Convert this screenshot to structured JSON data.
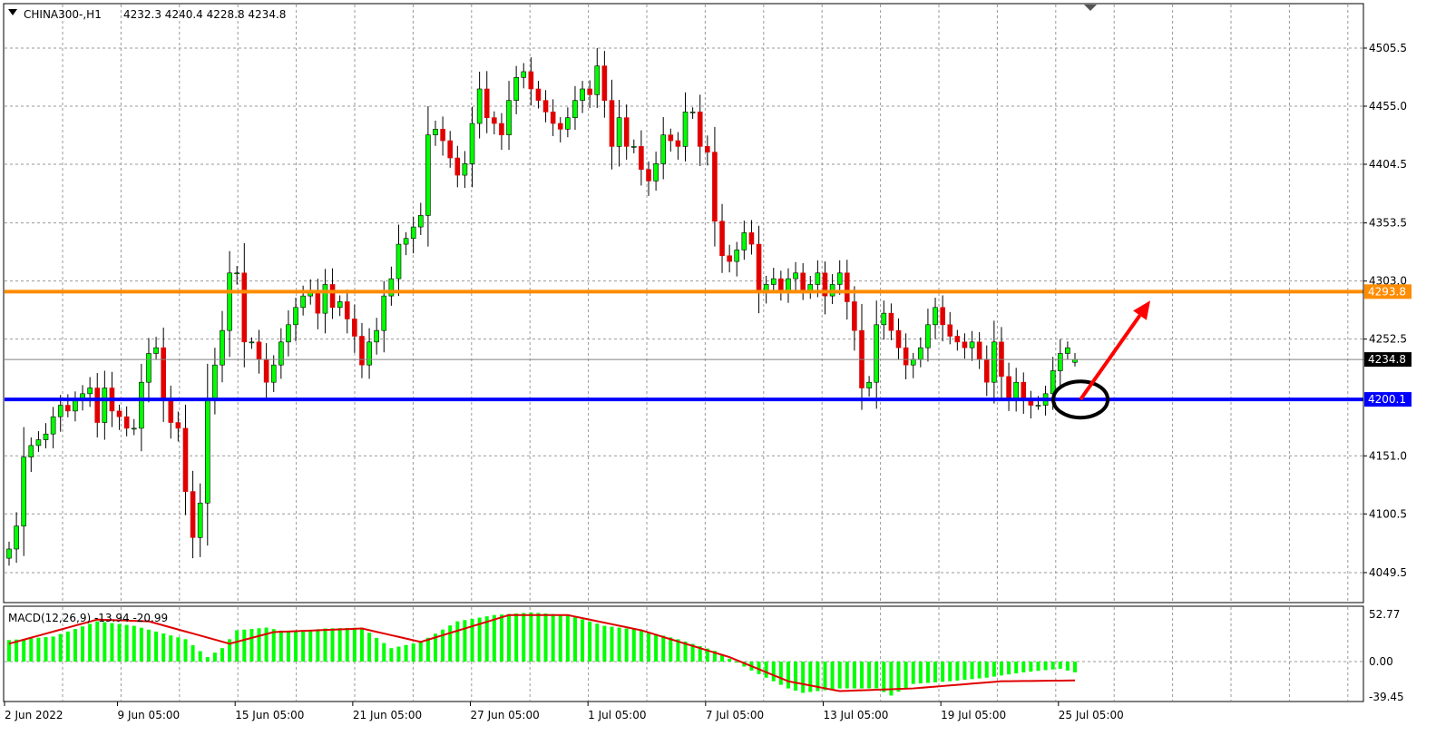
{
  "header": {
    "menu_icon": "triangle-down-icon",
    "symbol": "CHINA300-,H1",
    "ohlc": "4232.3 4240.4 4228.8 4234.8"
  },
  "colors": {
    "bull": "#00ff00",
    "bear": "#e00000",
    "resistance": "#ff8c00",
    "support": "#0000ff",
    "macd_histogram": "#00ff00",
    "macd_signal": "#e00000",
    "arrow": "#ff0000",
    "circle": "#000000"
  },
  "chart_data": {
    "type": "candlestick",
    "symbol": "CHINA300-",
    "timeframe": "H1",
    "ylim": [
      4020,
      4530
    ],
    "grid": true,
    "y_ticks": [
      "4505.5",
      "4455.0",
      "4404.5",
      "4353.5",
      "4303.0",
      "4252.5",
      "4151.0",
      "4100.5",
      "4049.5"
    ],
    "x_tick_labels": [
      {
        "idx": 0,
        "label": "2 Jun 2022"
      },
      {
        "idx": 15,
        "label": "9 Jun 05:00"
      },
      {
        "idx": 31,
        "label": "15 Jun 05:00"
      },
      {
        "idx": 47,
        "label": "21 Jun 05:00"
      },
      {
        "idx": 63,
        "label": "27 Jun 05:00"
      },
      {
        "idx": 79,
        "label": "1 Jul 05:00"
      },
      {
        "idx": 95,
        "label": "7 Jul 05:00"
      },
      {
        "idx": 111,
        "label": "13 Jul 05:00"
      },
      {
        "idx": 127,
        "label": "19 Jul 05:00"
      },
      {
        "idx": 143,
        "label": "25 Jul 05:00"
      }
    ],
    "closes": [
      4070,
      4090,
      4150,
      4160,
      4165,
      4170,
      4185,
      4195,
      4190,
      4200,
      4205,
      4210,
      4180,
      4210,
      4190,
      4185,
      4175,
      4175,
      4215,
      4240,
      4245,
      4200,
      4180,
      4175,
      4120,
      4080,
      4110,
      4200,
      4230,
      4260,
      4310,
      4310,
      4250,
      4250,
      4235,
      4215,
      4230,
      4250,
      4265,
      4280,
      4290,
      4295,
      4275,
      4300,
      4280,
      4285,
      4270,
      4255,
      4230,
      4250,
      4260,
      4290,
      4305,
      4335,
      4340,
      4350,
      4360,
      4430,
      4435,
      4425,
      4410,
      4395,
      4405,
      4440,
      4470,
      4445,
      4440,
      4430,
      4460,
      4480,
      4485,
      4470,
      4460,
      4450,
      4440,
      4435,
      4445,
      4460,
      4470,
      4465,
      4490,
      4460,
      4420,
      4445,
      4420,
      4420,
      4400,
      4390,
      4405,
      4430,
      4425,
      4420,
      4450,
      4450,
      4420,
      4415,
      4355,
      4325,
      4320,
      4330,
      4345,
      4335,
      4295,
      4300,
      4305,
      4295,
      4305,
      4310,
      4295,
      4300,
      4310,
      4290,
      4300,
      4310,
      4285,
      4260,
      4210,
      4215,
      4265,
      4275,
      4260,
      4245,
      4230,
      4235,
      4245,
      4265,
      4280,
      4265,
      4255,
      4250,
      4245,
      4250,
      4235,
      4215,
      4250,
      4220,
      4200,
      4215,
      4200,
      4195,
      4195,
      4205,
      4225,
      4240,
      4245,
      4234.8
    ],
    "last_bar": {
      "open": 4232.3,
      "high": 4240.4,
      "low": 4228.8,
      "close": 4234.8
    },
    "horizontal_lines": [
      {
        "price": 4293.8,
        "label": "4293.8",
        "color": "#ff8c00"
      },
      {
        "price": 4200.1,
        "label": "4200.1",
        "color": "#0000ff"
      }
    ],
    "current_price": {
      "price": 4234.8,
      "label": "4234.8"
    },
    "annotations": {
      "ellipse": {
        "idx": 146,
        "price": 4200
      },
      "arrow": {
        "from": {
          "idx": 146,
          "price": 4200
        },
        "to": {
          "idx": 155,
          "price": 4286
        }
      }
    },
    "macd": {
      "label": "MACD(12,26,9) -13.94 -20.99",
      "ylim": [
        -45,
        58
      ],
      "y_ticks": [
        "52.77",
        "0.00",
        "-39.45"
      ],
      "main": [
        [
          0,
          24
        ],
        [
          6,
          28
        ],
        [
          12,
          45
        ],
        [
          17,
          40
        ],
        [
          24,
          25
        ],
        [
          27,
          5
        ],
        [
          29,
          15
        ],
        [
          31,
          35
        ],
        [
          35,
          38
        ],
        [
          38,
          33
        ],
        [
          43,
          37
        ],
        [
          48,
          38
        ],
        [
          52,
          15
        ],
        [
          56,
          22
        ],
        [
          61,
          45
        ],
        [
          66,
          52
        ],
        [
          71,
          55
        ],
        [
          76,
          52
        ],
        [
          81,
          40
        ],
        [
          86,
          35
        ],
        [
          91,
          25
        ],
        [
          96,
          12
        ],
        [
          101,
          -10
        ],
        [
          106,
          -30
        ],
        [
          108,
          -35
        ],
        [
          113,
          -30
        ],
        [
          118,
          -30
        ],
        [
          120,
          -38
        ],
        [
          123,
          -25
        ],
        [
          128,
          -22
        ],
        [
          133,
          -18
        ],
        [
          138,
          -12
        ],
        [
          143,
          -8
        ],
        [
          146,
          -14
        ]
      ],
      "signal": [
        [
          0,
          20
        ],
        [
          12,
          47
        ],
        [
          19,
          45
        ],
        [
          30,
          20
        ],
        [
          36,
          33
        ],
        [
          48,
          37
        ],
        [
          56,
          22
        ],
        [
          68,
          52
        ],
        [
          76,
          52
        ],
        [
          86,
          35
        ],
        [
          98,
          5
        ],
        [
          106,
          -22
        ],
        [
          113,
          -33
        ],
        [
          123,
          -30
        ],
        [
          135,
          -22
        ],
        [
          146,
          -21
        ]
      ]
    }
  }
}
